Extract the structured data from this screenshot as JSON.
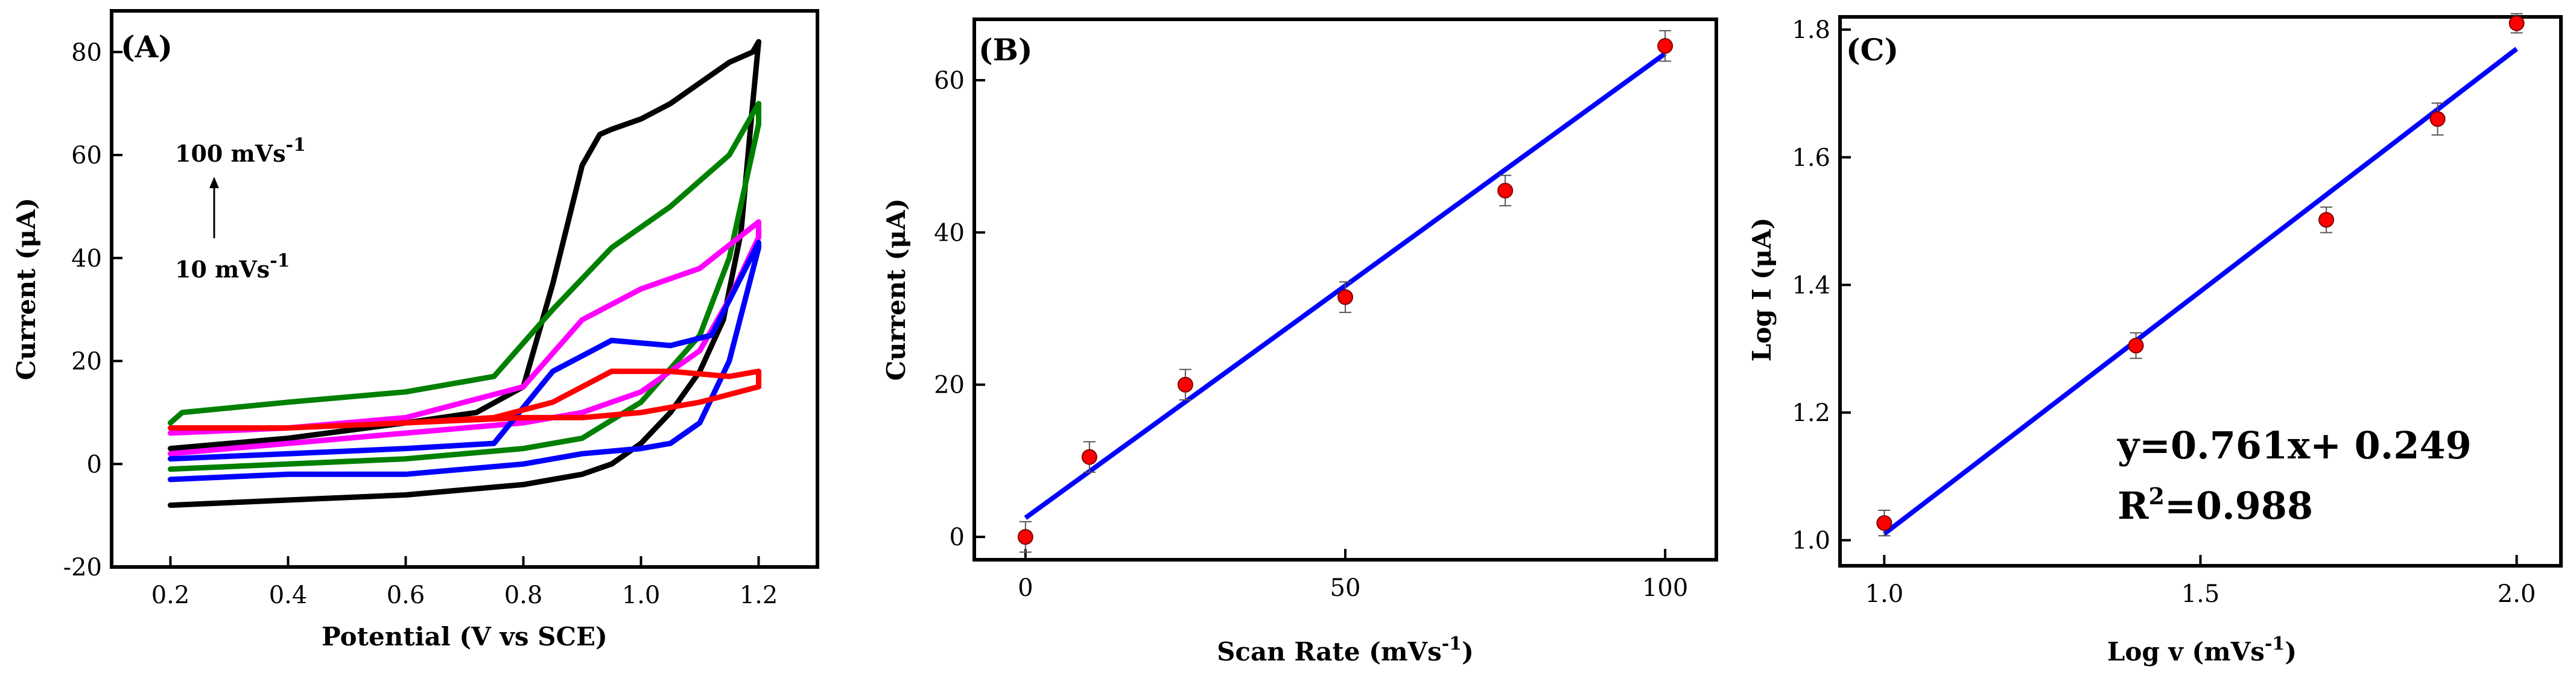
{
  "chart_data": [
    {
      "type": "line",
      "panel_label": "(A)",
      "xlabel": "Potential (V vs SCE)",
      "ylabel": "Current (μA)",
      "xlim": [
        0.1,
        1.3
      ],
      "ylim": [
        -20,
        88
      ],
      "xticks": [
        0.2,
        0.4,
        0.6,
        0.8,
        1.0,
        1.2
      ],
      "yticks": [
        -20,
        0,
        20,
        40,
        60,
        80
      ],
      "annotation_top": "100 mVs",
      "annotation_bottom": "10 mVs",
      "annotation_sup": "-1",
      "series": [
        {
          "color": "#000000",
          "x": [
            0.2,
            0.4,
            0.6,
            0.72,
            0.8,
            0.85,
            0.9,
            0.93,
            0.95,
            1.0,
            1.05,
            1.1,
            1.15,
            1.19,
            1.2,
            1.19,
            1.17,
            1.14,
            1.1,
            1.05,
            1.0,
            0.95,
            0.9,
            0.8,
            0.6,
            0.4,
            0.2
          ],
          "y": [
            3,
            5,
            8,
            10,
            15,
            35,
            58,
            64,
            65,
            67,
            70,
            74,
            78,
            80,
            82,
            70,
            45,
            28,
            18,
            10,
            4,
            0,
            -2,
            -4,
            -6,
            -7,
            -8
          ]
        },
        {
          "color": "#008000",
          "x": [
            0.2,
            0.22,
            0.4,
            0.6,
            0.75,
            0.85,
            0.95,
            1.05,
            1.15,
            1.2,
            1.2,
            1.15,
            1.1,
            1.0,
            0.9,
            0.8,
            0.6,
            0.4,
            0.2
          ],
          "y": [
            8,
            10,
            12,
            14,
            17,
            30,
            42,
            50,
            60,
            70,
            66,
            40,
            25,
            12,
            5,
            3,
            1,
            0,
            -1
          ]
        },
        {
          "color": "#ff00ff",
          "x": [
            0.2,
            0.4,
            0.6,
            0.8,
            0.9,
            1.0,
            1.1,
            1.2,
            1.2,
            1.15,
            1.1,
            1.0,
            0.9,
            0.8,
            0.6,
            0.4,
            0.2
          ],
          "y": [
            6,
            7,
            9,
            15,
            28,
            34,
            38,
            47,
            44,
            32,
            22,
            14,
            10,
            8,
            6,
            4,
            2
          ]
        },
        {
          "color": "#0000ff",
          "x": [
            0.2,
            0.4,
            0.6,
            0.75,
            0.85,
            0.95,
            1.05,
            1.12,
            1.2,
            1.2,
            1.15,
            1.1,
            1.05,
            1.0,
            0.9,
            0.8,
            0.6,
            0.4,
            0.2
          ],
          "y": [
            1,
            2,
            3,
            4,
            18,
            24,
            23,
            25,
            43,
            42,
            20,
            8,
            4,
            3,
            2,
            0,
            -2,
            -2,
            -3
          ]
        },
        {
          "color": "#ff0000",
          "x": [
            0.2,
            0.4,
            0.6,
            0.75,
            0.85,
            0.95,
            1.05,
            1.15,
            1.2,
            1.2,
            1.1,
            1.0,
            0.9,
            0.8,
            0.6,
            0.4,
            0.2
          ],
          "y": [
            7,
            7,
            8,
            9,
            12,
            18,
            18,
            17,
            18,
            15,
            12,
            10,
            9,
            9,
            8,
            7,
            7
          ]
        }
      ]
    },
    {
      "type": "scatter",
      "panel_label": "(B)",
      "xlabel": "Scan Rate (mVs",
      "xlabel_sup": "-1",
      "xlabel_end": ")",
      "ylabel": "Current (μA)",
      "xlim": [
        -8,
        108
      ],
      "ylim": [
        -3,
        68
      ],
      "xticks": [
        0,
        50,
        100
      ],
      "yticks": [
        0,
        20,
        40,
        60
      ],
      "points": {
        "x": [
          0,
          10,
          25,
          50,
          75,
          100
        ],
        "y": [
          0,
          10.5,
          20,
          31.5,
          45.5,
          64.5
        ],
        "err": [
          2.0,
          2.0,
          2.0,
          2.0,
          2.0,
          2.0
        ],
        "color": "#ff0000"
      },
      "fit": {
        "x": [
          0,
          100
        ],
        "y": [
          2.5,
          63.5
        ],
        "color": "#0000ff"
      }
    },
    {
      "type": "scatter",
      "panel_label": "(C)",
      "xlabel": "Log v (mVs",
      "xlabel_sup": "-1",
      "xlabel_end": ")",
      "ylabel": "Log I (μA)",
      "xlim": [
        0.93,
        2.07
      ],
      "ylim": [
        0.96,
        1.82
      ],
      "xticks": [
        1.0,
        1.5,
        2.0
      ],
      "yticks": [
        1.0,
        1.2,
        1.4,
        1.6,
        1.8
      ],
      "points": {
        "x": [
          1.0,
          1.398,
          1.699,
          1.875,
          2.0
        ],
        "y": [
          1.027,
          1.305,
          1.502,
          1.66,
          1.81
        ],
        "err": [
          0.02,
          0.02,
          0.02,
          0.025,
          0.015
        ],
        "color": "#ff0000"
      },
      "fit": {
        "x": [
          1.0,
          2.0
        ],
        "y": [
          1.01,
          1.77
        ],
        "color": "#0000ff"
      },
      "equation": "y=0.761x+ 0.249",
      "r2_prefix": "R",
      "r2_sup": "2",
      "r2_value": "=0.988"
    }
  ]
}
